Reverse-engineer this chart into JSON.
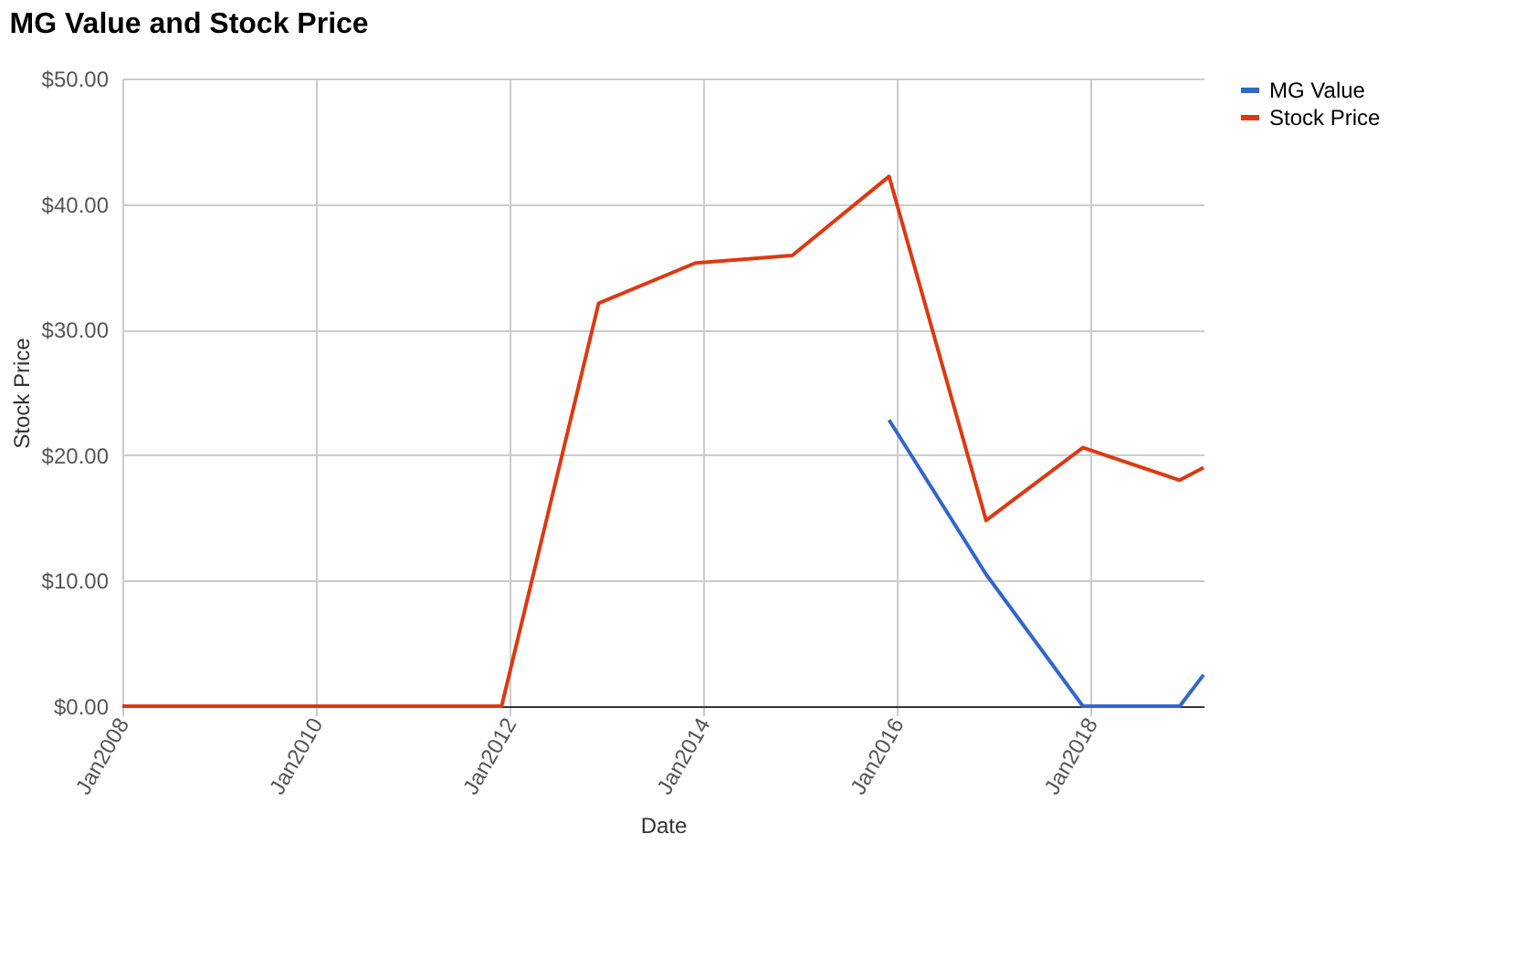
{
  "chart_data": {
    "type": "line",
    "title": "MG Value and Stock Price",
    "xlabel": "Date",
    "ylabel": "Stock Price",
    "xlim": [
      "2008-01",
      "2019-03"
    ],
    "xticks": [
      {
        "value": "2008-01",
        "label": "Jan2008"
      },
      {
        "value": "2010-01",
        "label": "Jan2010"
      },
      {
        "value": "2012-01",
        "label": "Jan2012"
      },
      {
        "value": "2014-01",
        "label": "Jan2014"
      },
      {
        "value": "2016-01",
        "label": "Jan2016"
      },
      {
        "value": "2018-01",
        "label": "Jan2018"
      }
    ],
    "ylim": [
      0,
      50
    ],
    "yticks": [
      {
        "value": 0,
        "label": "$0.00"
      },
      {
        "value": 10,
        "label": "$10.00"
      },
      {
        "value": 20,
        "label": "$20.00"
      },
      {
        "value": 30,
        "label": "$30.00"
      },
      {
        "value": 40,
        "label": "$40.00"
      },
      {
        "value": 50,
        "label": "$50.00"
      }
    ],
    "grid": true,
    "legend": "top right",
    "series": [
      {
        "name": "MG Value",
        "color": "#3366cc",
        "x": [
          "2015-12",
          "2016-12",
          "2017-12",
          "2018-12",
          "2019-03"
        ],
        "values": [
          22.8,
          10.5,
          0,
          0,
          2.5
        ]
      },
      {
        "name": "Stock Price",
        "color": "#dc3912",
        "x": [
          "2008-01",
          "2011-12",
          "2012-12",
          "2013-12",
          "2014-12",
          "2015-12",
          "2016-12",
          "2017-12",
          "2018-12",
          "2019-03"
        ],
        "values": [
          0,
          0,
          32.1,
          35.3,
          35.9,
          42.2,
          14.8,
          20.6,
          18.0,
          19.0
        ]
      }
    ]
  }
}
